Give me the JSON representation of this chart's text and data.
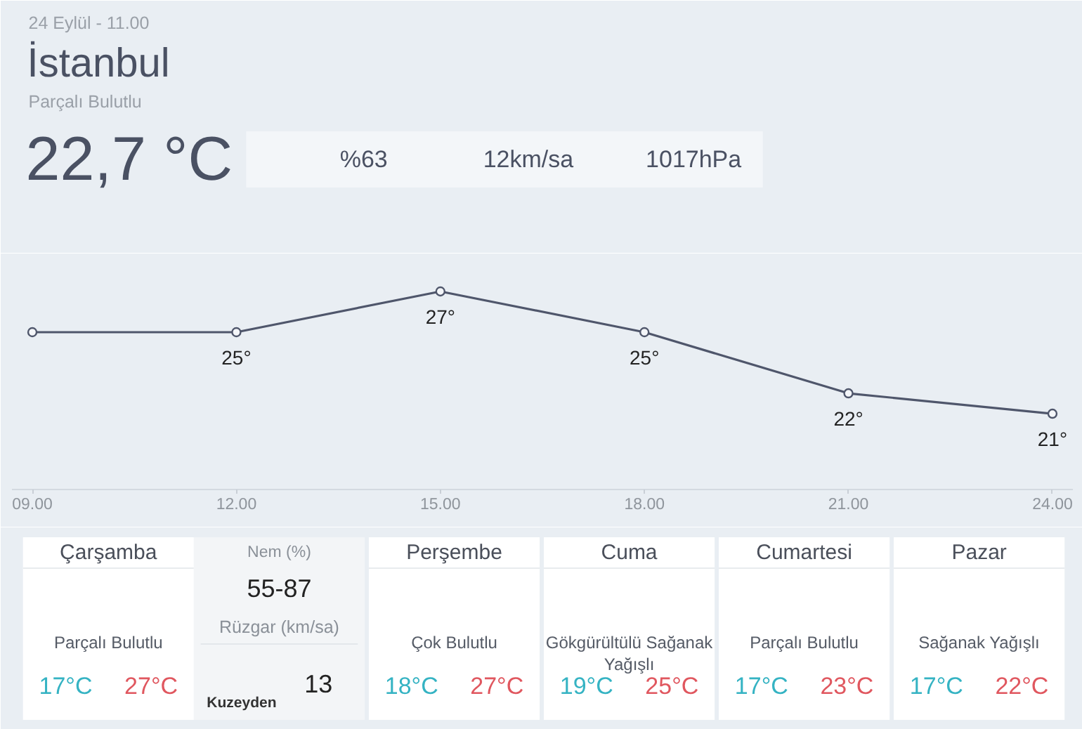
{
  "chart_data": [
    {
      "type": "other",
      "title": "İstanbul",
      "subtitle": "Parçalı Bulutlu",
      "annotations": [
        "24 Eylül - 11.00",
        "22,7 °C",
        "%63",
        "12km/sa",
        "1017hPa"
      ]
    },
    {
      "type": "line",
      "x": [
        9,
        12,
        15,
        18,
        21,
        24
      ],
      "values": [
        25,
        25,
        27,
        25,
        22,
        21
      ],
      "color": "#4f566b",
      "value_labels": [
        null,
        "25°",
        "27°",
        "25°",
        "22°",
        "21°"
      ],
      "xlim": [
        8.7,
        24.3
      ],
      "xticks": [
        {
          "value": 9,
          "label": "09.00"
        },
        {
          "value": 12,
          "label": "12.00"
        },
        {
          "value": 15,
          "label": "15.00"
        },
        {
          "value": 18,
          "label": "18.00"
        },
        {
          "value": 21,
          "label": "21.00"
        },
        {
          "value": 24,
          "label": "24.00"
        }
      ],
      "marker": "circle",
      "line_style": "solid",
      "tick_labels": "x"
    },
    {
      "type": "other",
      "title": "Çarşamba",
      "annotations": [
        "Parçalı Bulutlu",
        "17°C",
        "27°C"
      ]
    },
    {
      "type": "other",
      "title": "Nem (%)",
      "annotations": [
        "55-87",
        "Rüzgar (km/sa)",
        "13",
        "Kuzeyden"
      ]
    },
    {
      "type": "other",
      "title": "Perşembe",
      "annotations": [
        "Çok Bulutlu",
        "18°C",
        "27°C"
      ]
    },
    {
      "type": "other",
      "title": "Cuma",
      "annotations": [
        "Gökgürültülü Sağanak Yağışlı",
        "19°C",
        "25°C"
      ]
    },
    {
      "type": "other",
      "title": "Cumartesi",
      "annotations": [
        "Parçalı Bulutlu",
        "17°C",
        "23°C"
      ]
    },
    {
      "type": "other",
      "title": "Pazar",
      "annotations": [
        "Sağanak Yağışlı",
        "17°C",
        "22°C"
      ]
    }
  ]
}
